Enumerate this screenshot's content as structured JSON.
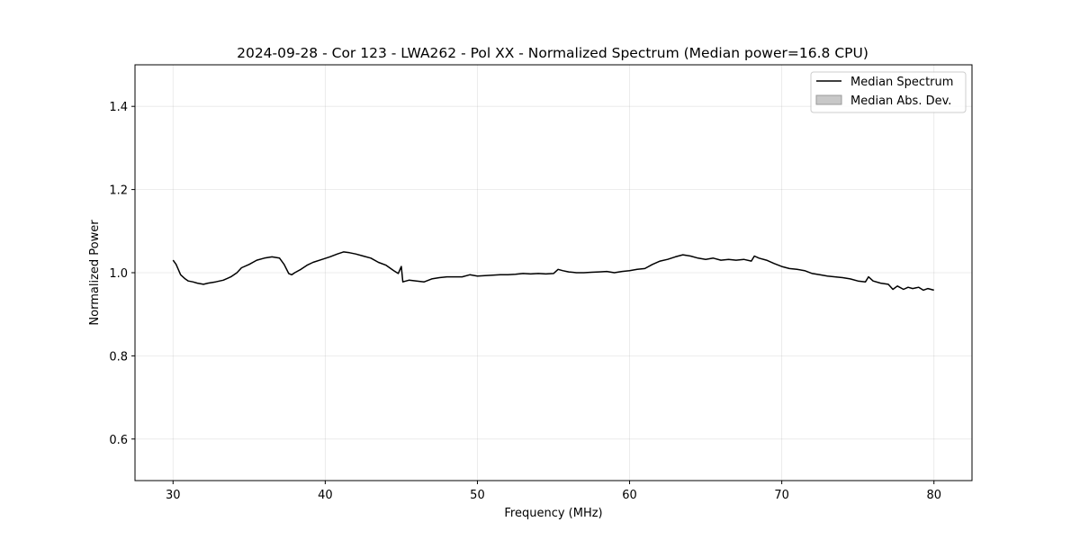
{
  "chart_data": {
    "type": "line",
    "title": "2024-09-28 - Cor 123 - LWA262 - Pol XX - Normalized Spectrum (Median power=16.8 CPU)",
    "xlabel": "Frequency (MHz)",
    "ylabel": "Normalized Power",
    "xlim": [
      27.5,
      82.5
    ],
    "ylim": [
      0.5,
      1.5
    ],
    "x_ticks": [
      30,
      40,
      50,
      60,
      70,
      80
    ],
    "y_ticks": [
      0.6,
      0.8,
      1.0,
      1.2,
      1.4
    ],
    "x_tick_labels": [
      "30",
      "40",
      "50",
      "60",
      "70",
      "80"
    ],
    "y_tick_labels": [
      "0.6",
      "0.8",
      "1.0",
      "1.2",
      "1.4"
    ],
    "grid": true,
    "legend_position": "top-right",
    "colors": {
      "line": "#000000",
      "band": "#c8c8c8",
      "band_edge": "#9a9a9a"
    },
    "series": [
      {
        "name": "Median Spectrum",
        "x": [
          30.0,
          30.2,
          30.5,
          30.8,
          31.0,
          31.3,
          31.6,
          32.0,
          32.3,
          32.8,
          33.3,
          33.8,
          34.2,
          34.5,
          35.0,
          35.5,
          36.0,
          36.5,
          37.0,
          37.3,
          37.6,
          37.8,
          38.0,
          38.4,
          38.8,
          39.2,
          39.8,
          40.3,
          40.8,
          41.2,
          41.6,
          42.0,
          42.5,
          43.0,
          43.5,
          44.0,
          44.5,
          44.8,
          45.0,
          45.1,
          45.5,
          46.0,
          46.5,
          47.0,
          47.5,
          48.0,
          48.5,
          49.0,
          49.5,
          50.0,
          50.5,
          51.0,
          51.5,
          52.0,
          52.5,
          53.0,
          53.5,
          54.0,
          54.5,
          55.0,
          55.3,
          55.6,
          56.0,
          56.5,
          57.0,
          57.5,
          58.0,
          58.5,
          59.0,
          59.5,
          60.0,
          60.5,
          61.0,
          61.5,
          62.0,
          62.5,
          63.0,
          63.5,
          64.0,
          64.5,
          65.0,
          65.5,
          66.0,
          66.5,
          67.0,
          67.5,
          68.0,
          68.2,
          68.5,
          69.0,
          69.5,
          70.0,
          70.5,
          71.0,
          71.5,
          72.0,
          72.5,
          73.0,
          73.5,
          74.0,
          74.5,
          75.0,
          75.5,
          75.7,
          76.0,
          76.5,
          77.0,
          77.3,
          77.6,
          78.0,
          78.3,
          78.6,
          79.0,
          79.3,
          79.6,
          80.0
        ],
        "values": [
          1.03,
          1.02,
          0.995,
          0.985,
          0.98,
          0.978,
          0.975,
          0.972,
          0.975,
          0.978,
          0.982,
          0.99,
          1.0,
          1.012,
          1.02,
          1.03,
          1.035,
          1.038,
          1.035,
          1.02,
          0.998,
          0.995,
          1.0,
          1.008,
          1.018,
          1.025,
          1.032,
          1.038,
          1.045,
          1.05,
          1.048,
          1.045,
          1.04,
          1.035,
          1.025,
          1.018,
          1.005,
          0.998,
          1.015,
          0.978,
          0.982,
          0.98,
          0.978,
          0.985,
          0.988,
          0.99,
          0.99,
          0.99,
          0.995,
          0.992,
          0.993,
          0.994,
          0.995,
          0.995,
          0.996,
          0.998,
          0.997,
          0.998,
          0.997,
          0.998,
          1.008,
          1.005,
          1.002,
          1.0,
          1.0,
          1.001,
          1.002,
          1.003,
          1.0,
          1.003,
          1.005,
          1.008,
          1.01,
          1.02,
          1.028,
          1.032,
          1.038,
          1.043,
          1.04,
          1.035,
          1.032,
          1.035,
          1.03,
          1.032,
          1.03,
          1.032,
          1.028,
          1.04,
          1.035,
          1.03,
          1.022,
          1.015,
          1.01,
          1.008,
          1.005,
          0.998,
          0.995,
          0.992,
          0.99,
          0.988,
          0.985,
          0.98,
          0.978,
          0.99,
          0.98,
          0.975,
          0.972,
          0.96,
          0.968,
          0.96,
          0.965,
          0.962,
          0.965,
          0.958,
          0.962,
          0.958
        ]
      },
      {
        "name": "Median Abs. Dev."
      }
    ]
  }
}
